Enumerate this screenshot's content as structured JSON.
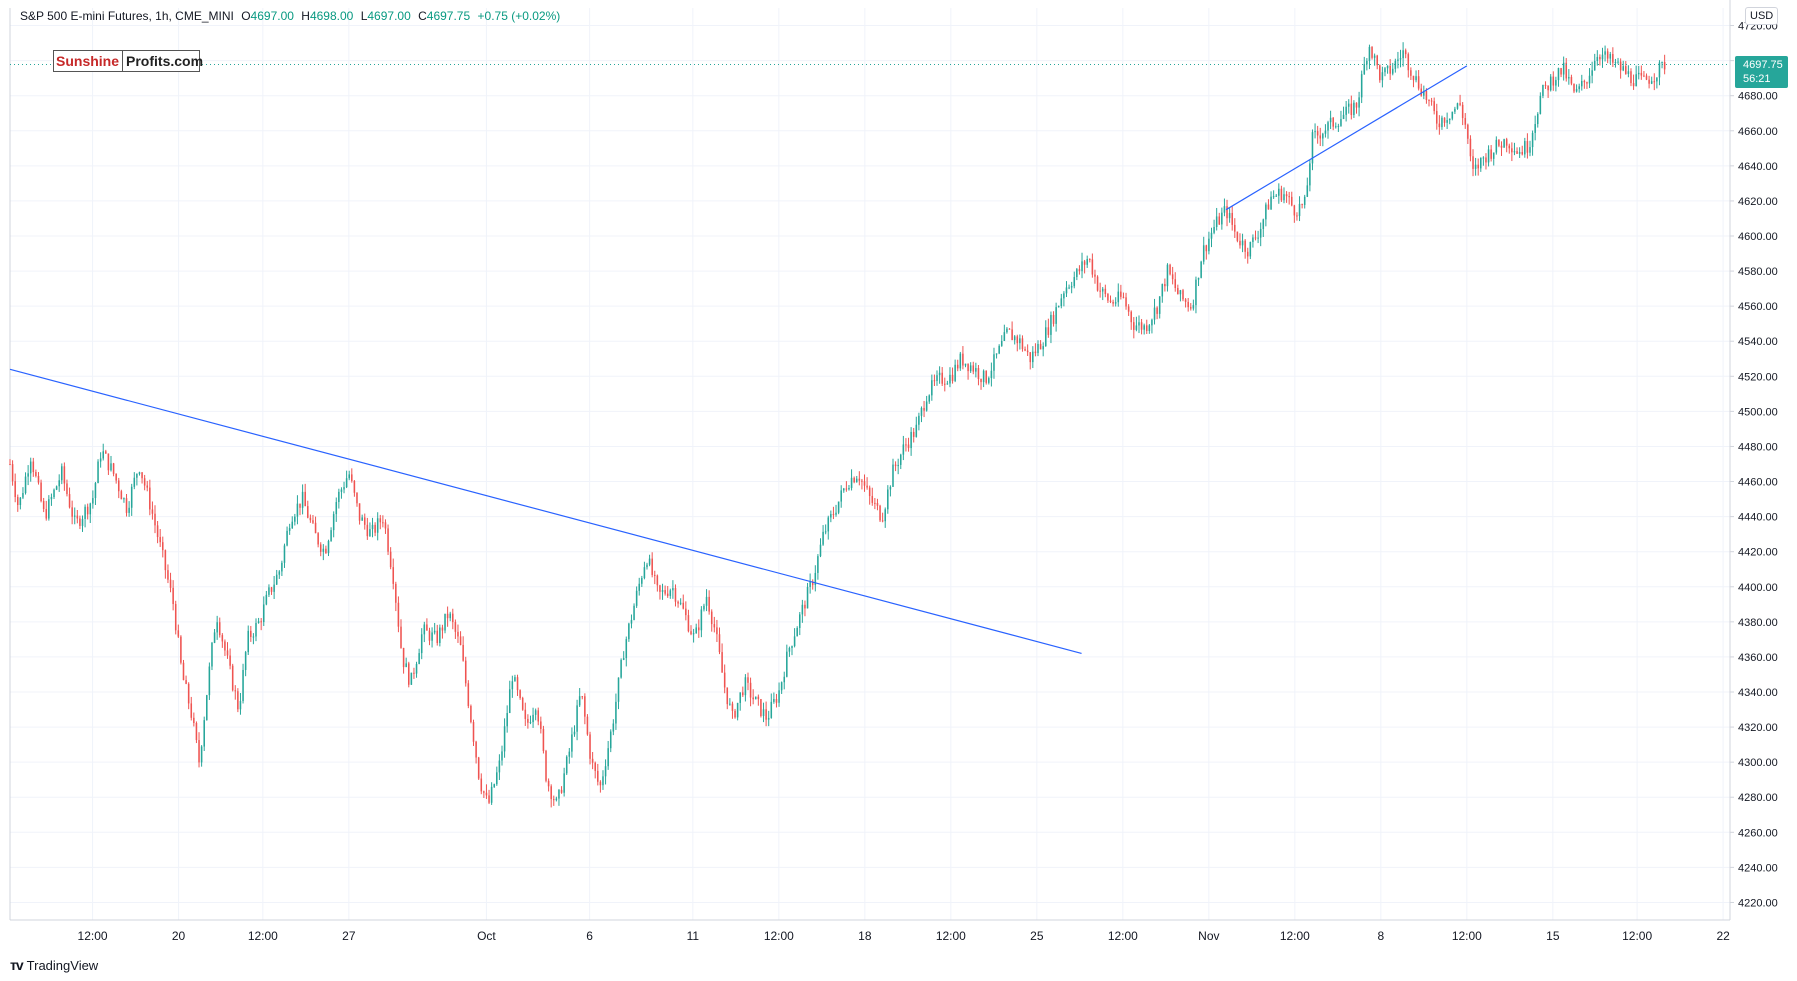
{
  "legend": {
    "symbol": "S&P 500 E-mini Futures, 1h, CME_MINI",
    "open_label": "O",
    "open": "4697.00",
    "high_label": "H",
    "high": "4698.00",
    "low_label": "L",
    "low": "4697.00",
    "close_label": "C",
    "close": "4697.75",
    "change": "+0.75 (+0.02%)"
  },
  "logo": {
    "brand": "Sunshine",
    "rest": "Profits.com"
  },
  "currency": "USD",
  "price_tag": {
    "price": "4697.75",
    "countdown": "56:21"
  },
  "footer": {
    "brand": "TradingView",
    "icon": "tradingview-logo-icon"
  },
  "colors": {
    "up": "#26a69a",
    "down": "#ef5350",
    "trendline": "#2962ff",
    "grid": "#f0f3fa"
  },
  "chart_data": {
    "type": "candlestick",
    "timeframe": "1h",
    "ylim": [
      4210,
      4730
    ],
    "y_ticks": [
      4220,
      4240,
      4260,
      4280,
      4300,
      4320,
      4340,
      4360,
      4380,
      4400,
      4420,
      4440,
      4460,
      4480,
      4500,
      4520,
      4540,
      4560,
      4580,
      4600,
      4620,
      4640,
      4660,
      4680,
      4700,
      4720
    ],
    "x_ticks": [
      {
        "label": "12:00",
        "pos": 0.048
      },
      {
        "label": "20",
        "pos": 0.098
      },
      {
        "label": "12:00",
        "pos": 0.147
      },
      {
        "label": "27",
        "pos": 0.197
      },
      {
        "label": "Oct",
        "pos": 0.277
      },
      {
        "label": "6",
        "pos": 0.337
      },
      {
        "label": "11",
        "pos": 0.397
      },
      {
        "label": "12:00",
        "pos": 0.447
      },
      {
        "label": "18",
        "pos": 0.497
      },
      {
        "label": "12:00",
        "pos": 0.547
      },
      {
        "label": "25",
        "pos": 0.597
      },
      {
        "label": "12:00",
        "pos": 0.647
      },
      {
        "label": "Nov",
        "pos": 0.697
      },
      {
        "label": "12:00",
        "pos": 0.747
      },
      {
        "label": "8",
        "pos": 0.797
      },
      {
        "label": "12:00",
        "pos": 0.847
      },
      {
        "label": "15",
        "pos": 0.897
      },
      {
        "label": "12:00",
        "pos": 0.946
      },
      {
        "label": "22",
        "pos": 0.996
      }
    ],
    "last_price": 4697.75,
    "path": [
      [
        0.0,
        4470
      ],
      [
        0.005,
        4445
      ],
      [
        0.012,
        4475
      ],
      [
        0.02,
        4440
      ],
      [
        0.03,
        4465
      ],
      [
        0.038,
        4435
      ],
      [
        0.048,
        4450
      ],
      [
        0.053,
        4478
      ],
      [
        0.06,
        4465
      ],
      [
        0.068,
        4445
      ],
      [
        0.075,
        4470
      ],
      [
        0.082,
        4445
      ],
      [
        0.088,
        4420
      ],
      [
        0.095,
        4390
      ],
      [
        0.1,
        4350
      ],
      [
        0.105,
        4330
      ],
      [
        0.11,
        4300
      ],
      [
        0.115,
        4345
      ],
      [
        0.12,
        4385
      ],
      [
        0.127,
        4355
      ],
      [
        0.133,
        4330
      ],
      [
        0.138,
        4370
      ],
      [
        0.145,
        4380
      ],
      [
        0.15,
        4395
      ],
      [
        0.157,
        4410
      ],
      [
        0.163,
        4440
      ],
      [
        0.17,
        4450
      ],
      [
        0.177,
        4430
      ],
      [
        0.183,
        4420
      ],
      [
        0.19,
        4450
      ],
      [
        0.197,
        4465
      ],
      [
        0.203,
        4440
      ],
      [
        0.21,
        4430
      ],
      [
        0.217,
        4440
      ],
      [
        0.223,
        4405
      ],
      [
        0.228,
        4360
      ],
      [
        0.233,
        4345
      ],
      [
        0.24,
        4375
      ],
      [
        0.248,
        4370
      ],
      [
        0.255,
        4385
      ],
      [
        0.262,
        4365
      ],
      [
        0.268,
        4325
      ],
      [
        0.273,
        4290
      ],
      [
        0.278,
        4275
      ],
      [
        0.285,
        4300
      ],
      [
        0.292,
        4350
      ],
      [
        0.3,
        4320
      ],
      [
        0.306,
        4335
      ],
      [
        0.312,
        4290
      ],
      [
        0.318,
        4275
      ],
      [
        0.325,
        4305
      ],
      [
        0.332,
        4340
      ],
      [
        0.338,
        4300
      ],
      [
        0.343,
        4285
      ],
      [
        0.35,
        4320
      ],
      [
        0.357,
        4365
      ],
      [
        0.363,
        4390
      ],
      [
        0.37,
        4418
      ],
      [
        0.377,
        4395
      ],
      [
        0.385,
        4400
      ],
      [
        0.392,
        4385
      ],
      [
        0.398,
        4370
      ],
      [
        0.405,
        4395
      ],
      [
        0.41,
        4375
      ],
      [
        0.415,
        4345
      ],
      [
        0.42,
        4325
      ],
      [
        0.427,
        4345
      ],
      [
        0.433,
        4335
      ],
      [
        0.44,
        4325
      ],
      [
        0.447,
        4340
      ],
      [
        0.453,
        4365
      ],
      [
        0.46,
        4385
      ],
      [
        0.467,
        4405
      ],
      [
        0.473,
        4430
      ],
      [
        0.48,
        4445
      ],
      [
        0.487,
        4460
      ],
      [
        0.493,
        4465
      ],
      [
        0.5,
        4450
      ],
      [
        0.507,
        4440
      ],
      [
        0.513,
        4465
      ],
      [
        0.52,
        4480
      ],
      [
        0.527,
        4490
      ],
      [
        0.533,
        4510
      ],
      [
        0.54,
        4518
      ],
      [
        0.547,
        4520
      ],
      [
        0.553,
        4530
      ],
      [
        0.56,
        4525
      ],
      [
        0.567,
        4518
      ],
      [
        0.573,
        4530
      ],
      [
        0.58,
        4545
      ],
      [
        0.587,
        4540
      ],
      [
        0.593,
        4530
      ],
      [
        0.6,
        4540
      ],
      [
        0.607,
        4555
      ],
      [
        0.613,
        4570
      ],
      [
        0.62,
        4578
      ],
      [
        0.627,
        4588
      ],
      [
        0.633,
        4570
      ],
      [
        0.64,
        4562
      ],
      [
        0.647,
        4565
      ],
      [
        0.653,
        4550
      ],
      [
        0.66,
        4548
      ],
      [
        0.667,
        4560
      ],
      [
        0.673,
        4580
      ],
      [
        0.68,
        4565
      ],
      [
        0.687,
        4560
      ],
      [
        0.693,
        4590
      ],
      [
        0.7,
        4605
      ],
      [
        0.707,
        4615
      ],
      [
        0.713,
        4600
      ],
      [
        0.72,
        4592
      ],
      [
        0.727,
        4605
      ],
      [
        0.733,
        4622
      ],
      [
        0.74,
        4625
      ],
      [
        0.747,
        4615
      ],
      [
        0.753,
        4618
      ],
      [
        0.757,
        4655
      ],
      [
        0.763,
        4660
      ],
      [
        0.77,
        4665
      ],
      [
        0.777,
        4670
      ],
      [
        0.783,
        4675
      ],
      [
        0.79,
        4710
      ],
      [
        0.797,
        4690
      ],
      [
        0.803,
        4695
      ],
      [
        0.81,
        4705
      ],
      [
        0.817,
        4690
      ],
      [
        0.823,
        4680
      ],
      [
        0.83,
        4665
      ],
      [
        0.837,
        4670
      ],
      [
        0.843,
        4675
      ],
      [
        0.847,
        4660
      ],
      [
        0.85,
        4635
      ],
      [
        0.857,
        4645
      ],
      [
        0.863,
        4650
      ],
      [
        0.87,
        4655
      ],
      [
        0.877,
        4648
      ],
      [
        0.883,
        4652
      ],
      [
        0.89,
        4680
      ],
      [
        0.897,
        4690
      ],
      [
        0.903,
        4695
      ],
      [
        0.91,
        4680
      ],
      [
        0.917,
        4690
      ],
      [
        0.923,
        4705
      ],
      [
        0.93,
        4700
      ],
      [
        0.937,
        4695
      ],
      [
        0.943,
        4690
      ],
      [
        0.95,
        4688
      ],
      [
        0.957,
        4693
      ],
      [
        0.962,
        4698
      ]
    ],
    "trendlines": [
      {
        "from": [
          0.0,
          4524
        ],
        "to": [
          0.623,
          4362
        ]
      },
      {
        "from": [
          0.707,
          4615
        ],
        "to": [
          0.847,
          4697
        ]
      }
    ]
  }
}
